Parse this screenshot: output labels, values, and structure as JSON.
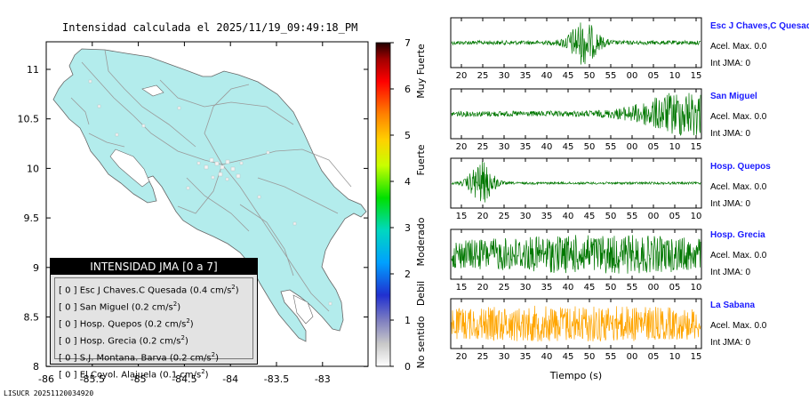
{
  "header": {
    "title": "Intensidad calculada el 2025/11/19_09:49:18_PM"
  },
  "footer": {
    "id": "LISUCR 20251120034920"
  },
  "map": {
    "x_ticks": [
      "-86",
      "-85.5",
      "-85",
      "-84.5",
      "-84",
      "-83.5",
      "-83"
    ],
    "y_ticks": [
      "11",
      "10.5",
      "10",
      "9.5",
      "9",
      "8.5",
      "8"
    ],
    "land_color": "#b6eaea",
    "legend": {
      "title": "INTENSIDAD JMA [0 a 7]",
      "entries": [
        {
          "level": "[ 0 ]",
          "station": "Esc J Chaves.C Quesada",
          "accel": "(0.4 cm/s",
          "sup": "2",
          "close": ")"
        },
        {
          "level": "[ 0 ]",
          "station": "San Miguel",
          "accel": "(0.2 cm/s",
          "sup": "2",
          "close": ")"
        },
        {
          "level": "[ 0 ]",
          "station": "Hosp. Quepos",
          "accel": "(0.2 cm/s",
          "sup": "2",
          "close": ")"
        },
        {
          "level": "[ 0 ]",
          "station": "Hosp. Grecia",
          "accel": "(0.2 cm/s",
          "sup": "2",
          "close": ")"
        },
        {
          "level": "[ 0 ]",
          "station": "S.J. Montana. Barva",
          "accel": "(0.2 cm/s",
          "sup": "2",
          "close": ")"
        },
        {
          "level": "[ 0 ]",
          "station": "El Coyol. Alajuela",
          "accel": "(0.1 cm/s",
          "sup": "2",
          "close": ")"
        }
      ]
    }
  },
  "colorbar": {
    "ticks": [
      "7",
      "6",
      "5",
      "4",
      "3",
      "2",
      "1",
      "0"
    ],
    "labels": [
      "Muy Fuerte",
      "Fuerte",
      "Moderado",
      "Debil",
      "No sentido"
    ]
  },
  "chart_data": {
    "type": "line",
    "title": "Intensidad calculada el 2025/11/19_09:49:18_PM",
    "xlabel": "Tiempo (s)",
    "ylabel": "",
    "series": [
      {
        "name": "Esc J Chaves,C Quesada",
        "accel": "Acel. Max. 0.0",
        "intensity": "Int JMA: 0",
        "color": "#007700",
        "x_ticks": [
          "20",
          "25",
          "30",
          "35",
          "40",
          "45",
          "50",
          "55",
          "00",
          "05",
          "10",
          "15"
        ],
        "burst_center": 0.53,
        "burst_width": 0.06,
        "noise": 0.09,
        "burst": 0.9
      },
      {
        "name": "San Miguel",
        "accel": "Acel. Max. 0.0",
        "intensity": "Int JMA: 0",
        "color": "#007700",
        "x_ticks": [
          "20",
          "25",
          "30",
          "35",
          "40",
          "45",
          "50",
          "55",
          "00",
          "05",
          "10",
          "15"
        ],
        "burst_center": 0.95,
        "burst_width": 0.2,
        "noise": 0.12,
        "burst": 0.9
      },
      {
        "name": "Hosp. Quepos",
        "accel": "Acel. Max. 0.0",
        "intensity": "Int JMA: 0",
        "color": "#007700",
        "x_ticks": [
          "15",
          "20",
          "25",
          "30",
          "35",
          "40",
          "45",
          "50",
          "55",
          "00",
          "05",
          "10"
        ],
        "burst_center": 0.12,
        "burst_width": 0.05,
        "noise": 0.05,
        "burst": 0.9
      },
      {
        "name": "Hosp. Grecia",
        "accel": "Acel. Max. 0.0",
        "intensity": "Int JMA: 0",
        "color": "#007700",
        "x_ticks": [
          "15",
          "20",
          "25",
          "30",
          "35",
          "40",
          "45",
          "50",
          "55",
          "00",
          "05",
          "10"
        ],
        "burst_center": 0.6,
        "burst_width": 0.5,
        "noise": 0.55,
        "burst": 0.3
      },
      {
        "name": "La Sabana",
        "accel": "Acel. Max. 0.0",
        "intensity": "Int JMA: 0",
        "color": "#ffa500",
        "x_ticks": [
          "20",
          "25",
          "30",
          "35",
          "40",
          "45",
          "50",
          "55",
          "00",
          "05",
          "10",
          "15"
        ],
        "burst_center": 0.5,
        "burst_width": 0.5,
        "noise": 0.6,
        "burst": 0.2
      }
    ]
  }
}
